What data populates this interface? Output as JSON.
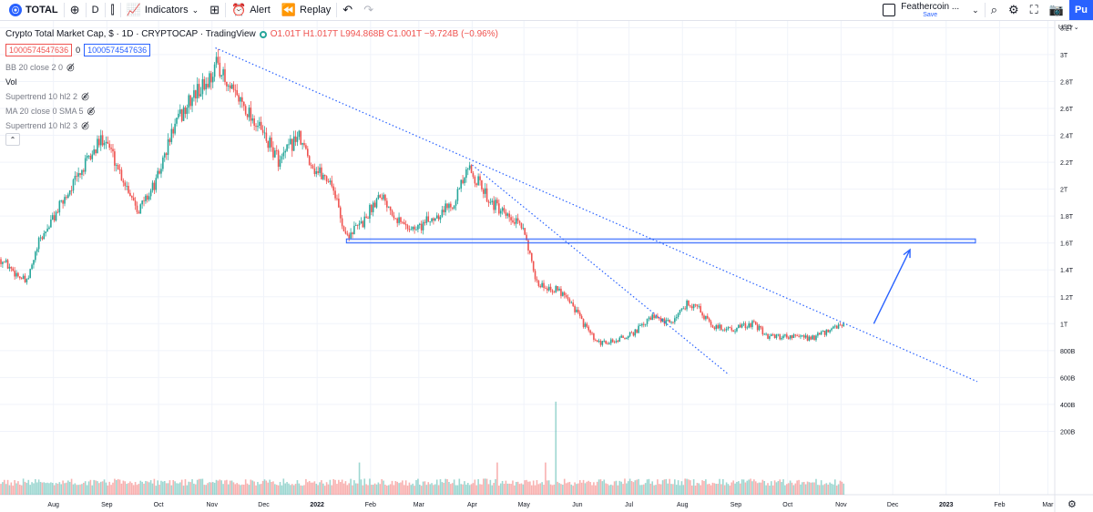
{
  "toolbar": {
    "symbol": "TOTAL",
    "interval": "D",
    "indicators_label": "Indicators",
    "alert_label": "Alert",
    "replay_label": "Replay",
    "layout_name": "Feathercoin ...",
    "layout_save": "Save",
    "publish_label": "Pu"
  },
  "legend": {
    "title": "Crypto Total Market Cap, $ · 1D · CRYPTOCAP · TradingView",
    "ohlc": "O1.01T H1.017T L994.868B C1.001T −9.724B (−0.96%)",
    "price_box_red": "1000574547636",
    "spread": "0",
    "price_box_blue": "1000574547636",
    "indicators": [
      "BB 20 close 2 0",
      "Vol",
      "Supertrend 10 hl2 2",
      "MA 20 close 0 SMA 5",
      "Supertrend 10 hl2 3"
    ]
  },
  "price_axis": {
    "currency": "USD",
    "ticks": [
      {
        "label": "3.2T",
        "value": 3200
      },
      {
        "label": "3T",
        "value": 3000
      },
      {
        "label": "2.8T",
        "value": 2800
      },
      {
        "label": "2.6T",
        "value": 2600
      },
      {
        "label": "2.4T",
        "value": 2400
      },
      {
        "label": "2.2T",
        "value": 2200
      },
      {
        "label": "2T",
        "value": 2000
      },
      {
        "label": "1.8T",
        "value": 1800
      },
      {
        "label": "1.6T",
        "value": 1600
      },
      {
        "label": "1.4T",
        "value": 1400
      },
      {
        "label": "1.2T",
        "value": 1200
      },
      {
        "label": "1T",
        "value": 1000
      },
      {
        "label": "800B",
        "value": 800
      },
      {
        "label": "600B",
        "value": 600
      },
      {
        "label": "400B",
        "value": 400
      },
      {
        "label": "200B",
        "value": 200
      }
    ]
  },
  "time_axis": {
    "ticks": [
      {
        "label": "Aug",
        "t": 31
      },
      {
        "label": "Sep",
        "t": 62
      },
      {
        "label": "Oct",
        "t": 92
      },
      {
        "label": "Nov",
        "t": 123
      },
      {
        "label": "Dec",
        "t": 153
      },
      {
        "label": "2022",
        "t": 184
      },
      {
        "label": "Feb",
        "t": 215
      },
      {
        "label": "Mar",
        "t": 243
      },
      {
        "label": "Apr",
        "t": 274
      },
      {
        "label": "May",
        "t": 304
      },
      {
        "label": "Jun",
        "t": 335
      },
      {
        "label": "Jul",
        "t": 365
      },
      {
        "label": "Aug",
        "t": 396
      },
      {
        "label": "Sep",
        "t": 427
      },
      {
        "label": "Oct",
        "t": 457
      },
      {
        "label": "Nov",
        "t": 488
      },
      {
        "label": "Dec",
        "t": 518
      },
      {
        "label": "2023",
        "t": 549
      },
      {
        "label": "Feb",
        "t": 580
      },
      {
        "label": "Mar",
        "t": 608
      }
    ]
  },
  "chart_data": {
    "type": "candlestick",
    "series_anchors": [
      {
        "t": 0,
        "v": 1480
      },
      {
        "t": 15,
        "v": 1300
      },
      {
        "t": 22,
        "v": 1600
      },
      {
        "t": 40,
        "v": 2000
      },
      {
        "t": 60,
        "v": 2400
      },
      {
        "t": 70,
        "v": 2100
      },
      {
        "t": 80,
        "v": 1850
      },
      {
        "t": 90,
        "v": 2050
      },
      {
        "t": 100,
        "v": 2450
      },
      {
        "t": 112,
        "v": 2700
      },
      {
        "t": 120,
        "v": 2800
      },
      {
        "t": 126,
        "v": 2950
      },
      {
        "t": 131,
        "v": 2750
      },
      {
        "t": 140,
        "v": 2650
      },
      {
        "t": 150,
        "v": 2450
      },
      {
        "t": 162,
        "v": 2200
      },
      {
        "t": 172,
        "v": 2400
      },
      {
        "t": 182,
        "v": 2150
      },
      {
        "t": 192,
        "v": 2050
      },
      {
        "t": 200,
        "v": 1650
      },
      {
        "t": 210,
        "v": 1750
      },
      {
        "t": 220,
        "v": 1980
      },
      {
        "t": 232,
        "v": 1750
      },
      {
        "t": 240,
        "v": 1700
      },
      {
        "t": 250,
        "v": 1780
      },
      {
        "t": 262,
        "v": 1900
      },
      {
        "t": 272,
        "v": 2150
      },
      {
        "t": 282,
        "v": 1950
      },
      {
        "t": 292,
        "v": 1800
      },
      {
        "t": 304,
        "v": 1700
      },
      {
        "t": 310,
        "v": 1300
      },
      {
        "t": 318,
        "v": 1270
      },
      {
        "t": 328,
        "v": 1220
      },
      {
        "t": 338,
        "v": 1000
      },
      {
        "t": 346,
        "v": 850
      },
      {
        "t": 356,
        "v": 870
      },
      {
        "t": 366,
        "v": 920
      },
      {
        "t": 378,
        "v": 1050
      },
      {
        "t": 388,
        "v": 1000
      },
      {
        "t": 398,
        "v": 1150
      },
      {
        "t": 404,
        "v": 1130
      },
      {
        "t": 412,
        "v": 980
      },
      {
        "t": 425,
        "v": 960
      },
      {
        "t": 436,
        "v": 1000
      },
      {
        "t": 446,
        "v": 900
      },
      {
        "t": 458,
        "v": 910
      },
      {
        "t": 470,
        "v": 890
      },
      {
        "t": 480,
        "v": 940
      },
      {
        "t": 489,
        "v": 1001
      }
    ],
    "trendlines": [
      {
        "t1": 125,
        "v1": 3050,
        "t2": 567,
        "v2": 570
      },
      {
        "t1": 274,
        "v1": 2180,
        "t2": 423,
        "v2": 620
      }
    ],
    "support_zone": {
      "t1": 201,
      "v1": 1600,
      "t2": 566,
      "v2": 1630
    },
    "arrow": {
      "t1": 507,
      "v1": 1000,
      "t2": 528,
      "v2": 1550
    },
    "volume_ylim": [
      0,
      2800
    ],
    "ylim_top": 3250,
    "ylim_bottom": 0
  }
}
